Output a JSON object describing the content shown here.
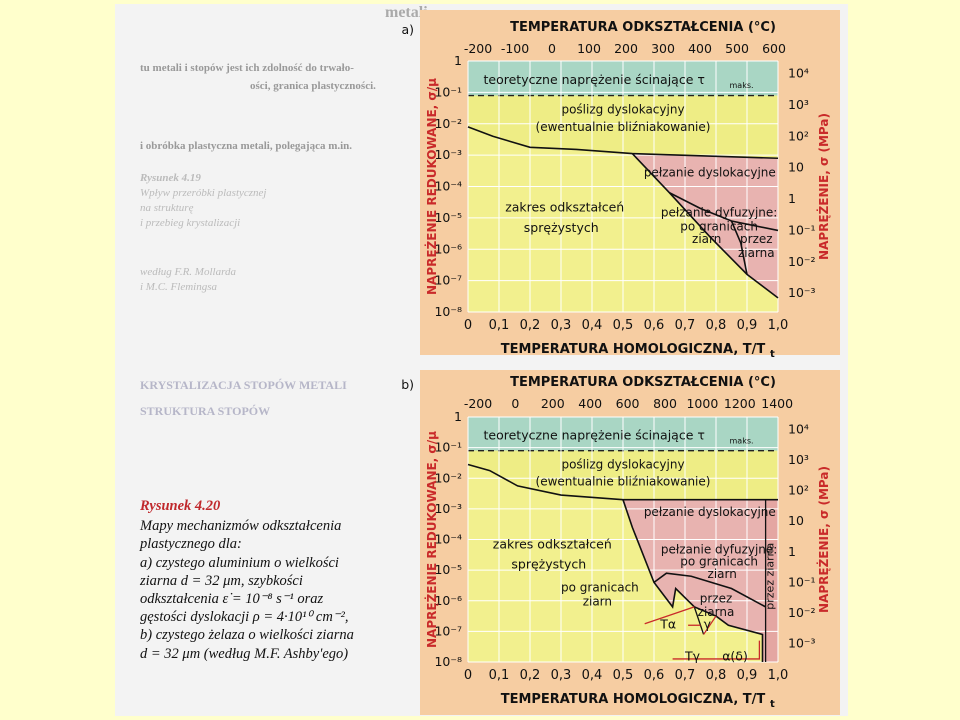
{
  "background_text": [
    "metali",
    "tu metali i stopów jest ich zdolność do trwało-",
    "ości, granica plastyczności.",
    "i obróbka plastyczna metali, polegająca m.in.",
    "Rysunek 4.19",
    "Wpływ przeróbki plastycznej",
    "na strukturę",
    "i przebieg krystalizacji",
    "według F.R. Mollarda",
    "i M.C. Flemingsa",
    "KRYSTALIZACJA STOPÓW METALI",
    "STRUKTURA STOPÓW"
  ],
  "caption": {
    "heading": "Rysunek 4.20",
    "lines": [
      "Mapy mechanizmów odkształcenia",
      "plastycznego dla:",
      "a) czystego aluminium o wielkości",
      "ziarna d = 32 μm, szybkości",
      "odkształcenia ε̇ = 10⁻⁸ s⁻¹ oraz",
      "gęstości dyslokacji ρ = 4·10¹⁰ cm⁻²,",
      "b) czystego żelaza o wielkości ziarna",
      "d = 32 μm (według M.F. Ashby'ego)"
    ]
  },
  "colors": {
    "teal": "#a9d6c4",
    "yellow": "#f2f08e",
    "pink": "#e8b3b0",
    "axis_red": "#c92a2a",
    "frame": "#f6cda2"
  },
  "diagrams": [
    {
      "panel_label": "a)",
      "top_axis_title": "TEMPERATURA ODKSZTAŁCENIA (°C)",
      "top_ticks": [
        "-200",
        "-100",
        "0",
        "100",
        "200",
        "300",
        "400",
        "500",
        "600"
      ],
      "bottom_axis_title": "TEMPERATURA HOMOLOGICZNA, T/T",
      "bottom_axis_sub": "t",
      "bottom_ticks": [
        "0",
        "0,1",
        "0,2",
        "0,3",
        "0,4",
        "0,5",
        "0,6",
        "0,7",
        "0,8",
        "0,9",
        "1,0"
      ],
      "left_axis_title": "NAPRĘŻENIE REDUKOWANE, σ/μ",
      "left_ticks": [
        "1",
        "10⁻¹",
        "10⁻²",
        "10⁻³",
        "10⁻⁴",
        "10⁻⁵",
        "10⁻⁶",
        "10⁻⁷",
        "10⁻⁸"
      ],
      "right_axis_title": "NAPRĘŻENIE, σ (MPa)",
      "right_ticks": [
        "10⁴",
        "10³",
        "10²",
        "10",
        "1",
        "10⁻¹",
        "10⁻²",
        "10⁻³"
      ],
      "regions": {
        "theoretical": "teoretyczne naprężenie ścinające τ",
        "theoretical_sub": "maks.",
        "slip_1": "poślizg dyslokacyjny",
        "slip_2": "(ewentualnie bliźniakowanie)",
        "creep": "pełzanie dyslokacyjne",
        "elastic_1": "zakres odkształceń",
        "elastic_2": "sprężystych",
        "diff_1": "pełzanie dyfuzyjne:",
        "diff_2": "po granicach",
        "diff_3": "ziarn",
        "diff_4": "przez",
        "diff_5": "ziarna"
      }
    },
    {
      "panel_label": "b)",
      "top_axis_title": "TEMPERATURA ODKSZTAŁCENIA (°C)",
      "top_ticks": [
        "-200",
        "0",
        "200",
        "400",
        "600",
        "800",
        "1000",
        "1200",
        "1400"
      ],
      "bottom_axis_title": "TEMPERATURA HOMOLOGICZNA, T/T",
      "bottom_axis_sub": "t",
      "bottom_ticks": [
        "0",
        "0,1",
        "0,2",
        "0,3",
        "0,4",
        "0,5",
        "0,6",
        "0,7",
        "0,8",
        "0,9",
        "1,0"
      ],
      "left_axis_title": "NAPRĘŻENIE REDUKOWANE, σ/μ",
      "left_ticks": [
        "1",
        "10⁻¹",
        "10⁻²",
        "10⁻³",
        "10⁻⁴",
        "10⁻⁵",
        "10⁻⁶",
        "10⁻⁷",
        "10⁻⁸"
      ],
      "right_axis_title": "NAPRĘŻENIE, σ (MPa)",
      "right_ticks": [
        "10⁴",
        "10³",
        "10²",
        "10",
        "1",
        "10⁻¹",
        "10⁻²",
        "10⁻³"
      ],
      "regions": {
        "theoretical": "teoretyczne naprężenie ścinające τ",
        "theoretical_sub": "maks.",
        "slip_1": "poślizg dyslokacyjny",
        "slip_2": "(ewentualnie bliźniakowanie)",
        "creep": "pełzanie dyslokacyjne",
        "elastic_1": "zakres odkształceń",
        "elastic_2": "sprężystych",
        "diff_1": "pełzanie dyfuzyjne:",
        "diff_2": "po granicach",
        "diff_3": "ziarn",
        "gb_1": "po granicach",
        "gb_2": "ziarn",
        "lat_1": "przez",
        "lat_2": "ziarna",
        "through": "przez ziarna",
        "phase_1": "Tα",
        "phase_2": "γ",
        "phase_3": "Tγ",
        "phase_4": "α(δ)"
      }
    }
  ]
}
